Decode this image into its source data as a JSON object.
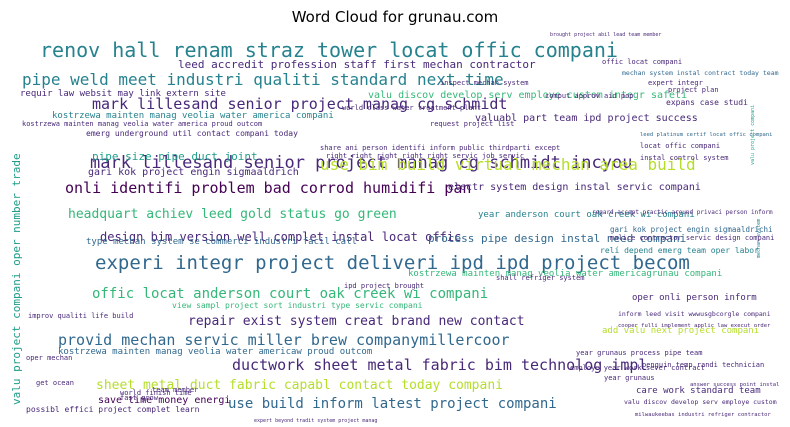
{
  "chart_data": {
    "type": "wordcloud",
    "title": "Word Cloud for grunau.com",
    "colormap": "viridis",
    "words": [
      {
        "text": "renov hall renam straz tower locat offic compani",
        "weight": 1.0
      },
      {
        "text": "experi integr project deliveri ipd ipd project becom",
        "weight": 0.96
      },
      {
        "text": "mark lillesand senior project manag cg schmidt incyou",
        "weight": 0.9
      },
      {
        "text": "pipe weld meet industri qualiti standard next time",
        "weight": 0.86
      },
      {
        "text": "ductwork sheet metal fabric bim technolog impl",
        "weight": 0.84
      },
      {
        "text": "provid mechan servic miller brew companymillercoor",
        "weight": 0.8
      },
      {
        "text": "onli identifi problem bad corrod humidifi pan",
        "weight": 0.76
      },
      {
        "text": "use bim build virtual mechan area build",
        "weight": 0.78
      },
      {
        "text": "mark lillesand senior project manag cg schmidt",
        "weight": 0.72
      },
      {
        "text": "offic locat anderson court oak creek wi compani",
        "weight": 0.7
      },
      {
        "text": "use build inform latest project compani",
        "weight": 0.72
      },
      {
        "text": "sheet metal duct fabric capabl contact today compani",
        "weight": 0.68
      },
      {
        "text": "repair exist system creat brand new contact",
        "weight": 0.66
      },
      {
        "text": "headquart achiev leed gold status go green",
        "weight": 0.64
      },
      {
        "text": "design bim version well complet instal locat offic",
        "weight": 0.62
      },
      {
        "text": "valu project compani oper number trade",
        "weight": 0.6
      },
      {
        "text": "leed accredit profession staff first mechan contractor",
        "weight": 0.56
      },
      {
        "text": "pipe size pipe duct joint",
        "weight": 0.54
      },
      {
        "text": "process pipe design instal need compani",
        "weight": 0.5
      },
      {
        "text": "kostrzewa mainten manag veolia water america compani",
        "weight": 0.48
      },
      {
        "text": "gari kok project engin sigmaaldrich",
        "weight": 0.46
      },
      {
        "text": "valu discov develop serv employe custom integr safeti",
        "weight": 0.46
      },
      {
        "text": "save time money energi",
        "weight": 0.44
      },
      {
        "text": "valuabl part team ipd project success",
        "weight": 0.44
      },
      {
        "text": "kostrzewa mainten manag veolia water americaw proud outcom",
        "weight": 0.44
      },
      {
        "text": "care work standard team",
        "weight": 0.42
      },
      {
        "text": "electr system design instal servic compani",
        "weight": 0.42
      },
      {
        "text": "year anderson court oak creek wi compani",
        "weight": 0.4
      },
      {
        "text": "type mechan system se commerci industri facil call",
        "weight": 0.4
      },
      {
        "text": "kostrzewa mainten manag veolia water americagrunau compani",
        "weight": 0.4
      },
      {
        "text": "oper onli person inform",
        "weight": 0.38
      },
      {
        "text": "add valu next project compani",
        "weight": 0.38
      },
      {
        "text": "gari kok project engin sigmaaldrichi",
        "weight": 0.38
      },
      {
        "text": "emerg underground util contact compani today",
        "weight": 0.34
      },
      {
        "text": "leed platinum certif locat offic compani",
        "weight": 0.32
      },
      {
        "text": "requir law websit may link extern site",
        "weight": 0.32
      },
      {
        "text": "regard accept practic around privaci person inform",
        "weight": 0.32
      },
      {
        "text": "relí depend emerg team oper labor",
        "weight": 0.32
      },
      {
        "text": "possibl effici project complet learn",
        "weight": 0.3
      },
      {
        "text": "expans case studi",
        "weight": 0.3
      },
      {
        "text": "view sampl project sort industri type servic compani",
        "weight": 0.3
      },
      {
        "text": "inform leed visit wwwusgbcorgle compani",
        "weight": 0.3
      },
      {
        "text": "kostrzewa mainten manag veolia water america proud outcom",
        "weight": 0.3
      },
      {
        "text": "mechan system instal contract today team",
        "weight": 0.28
      },
      {
        "text": "cooper fulli implement applic law execut order",
        "weight": 0.28
      },
      {
        "text": "valu discov develop serv employe custom",
        "weight": 0.28
      },
      {
        "text": "improv qualiti life build",
        "weight": 0.26
      },
      {
        "text": "year grunaus process pipe team",
        "weight": 0.26
      },
      {
        "text": "expert beyond tradit system project manag",
        "weight": 0.26
      },
      {
        "text": "milwaukeebas industri refriger contractor",
        "weight": 0.26
      },
      {
        "text": "ipd project brought",
        "weight": 0.26
      },
      {
        "text": "share ani person identifi inform public thirdparti except",
        "weight": 0.24
      },
      {
        "text": "right right right right right servic job servic",
        "weight": 0.24
      },
      {
        "text": "brought project abil lead team member",
        "weight": 0.24
      },
      {
        "text": "locat offic compani",
        "weight": 0.24
      },
      {
        "text": "world class water treatment plant",
        "weight": 0.24
      },
      {
        "text": "inspect mechan system",
        "weight": 0.22
      },
      {
        "text": "comput approv aid pop",
        "weight": 0.22
      },
      {
        "text": "request project list",
        "weight": 0.22
      },
      {
        "text": "shall refriger system",
        "weight": 0.22
      },
      {
        "text": "penguin temp randi technician",
        "weight": 0.2
      },
      {
        "text": "employe year work sever contract",
        "weight": 0.2
      },
      {
        "text": "answer success point instal",
        "weight": 0.2
      },
      {
        "text": "offic locat compani",
        "weight": 0.2
      },
      {
        "text": "year grunaus",
        "weight": 0.2
      },
      {
        "text": "world finish time",
        "weight": 0.2
      },
      {
        "text": "project plan",
        "weight": 0.2
      },
      {
        "text": "valu project compani",
        "weight": 0.18
      },
      {
        "text": "mechan system",
        "weight": 0.18
      },
      {
        "text": "oper mechan",
        "weight": 0.18
      },
      {
        "text": "malice contractor servic design compani",
        "weight": 0.2
      },
      {
        "text": "instal control system",
        "weight": 0.16
      },
      {
        "text": "expert integr",
        "weight": 0.16
      },
      {
        "text": "team member",
        "weight": 0.16
      },
      {
        "text": "get ocean",
        "weight": 0.14
      },
      {
        "text": "fast grow",
        "weight": 0.14
      }
    ]
  }
}
